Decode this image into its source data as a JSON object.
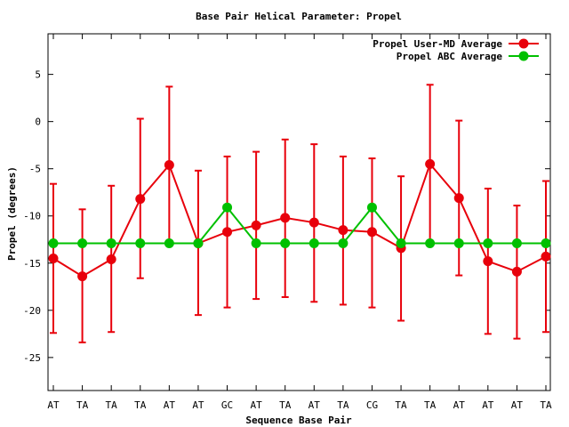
{
  "chart_data": {
    "type": "line",
    "title": "Base Pair Helical Parameter: Propel",
    "xlabel": "Sequence Base Pair",
    "ylabel": "Propel (degrees)",
    "categories": [
      "AT",
      "TA",
      "TA",
      "TA",
      "AT",
      "AT",
      "GC",
      "AT",
      "TA",
      "AT",
      "TA",
      "CG",
      "TA",
      "TA",
      "AT",
      "AT",
      "AT",
      "TA"
    ],
    "ylim": [
      -28.5,
      9.3
    ],
    "yticks": [
      5,
      0,
      -5,
      -10,
      -15,
      -20,
      -25
    ],
    "grid": false,
    "legend_position": "top-right",
    "series": [
      {
        "name": "Propel User-MD Average",
        "color": "#e8000b",
        "values": [
          -14.5,
          -16.4,
          -14.6,
          -8.2,
          -4.6,
          -12.9,
          -11.7,
          -11.0,
          -10.2,
          -10.7,
          -11.5,
          -11.7,
          -13.4,
          -4.5,
          -8.1,
          -14.8,
          -15.9,
          -14.3
        ],
        "error_low": [
          -22.4,
          -23.4,
          -22.3,
          -16.6,
          -12.8,
          -20.5,
          -19.7,
          -18.8,
          -18.6,
          -19.1,
          -19.4,
          -19.7,
          -21.1,
          -12.8,
          -16.3,
          -22.5,
          -23.0,
          -22.3
        ],
        "error_high": [
          -6.6,
          -9.3,
          -6.8,
          0.3,
          3.7,
          -5.2,
          -3.7,
          -3.2,
          -1.9,
          -2.4,
          -3.7,
          -3.9,
          -5.8,
          3.9,
          0.1,
          -7.1,
          -8.9,
          -6.3
        ]
      },
      {
        "name": "Propel ABC Average",
        "color": "#00c000",
        "values": [
          -12.9,
          -12.9,
          -12.9,
          -12.9,
          -12.9,
          -12.9,
          -9.1,
          -12.9,
          -12.9,
          -12.9,
          -12.9,
          -9.1,
          -12.9,
          -12.9,
          -12.9,
          -12.9,
          -12.9,
          -12.9
        ]
      }
    ]
  }
}
